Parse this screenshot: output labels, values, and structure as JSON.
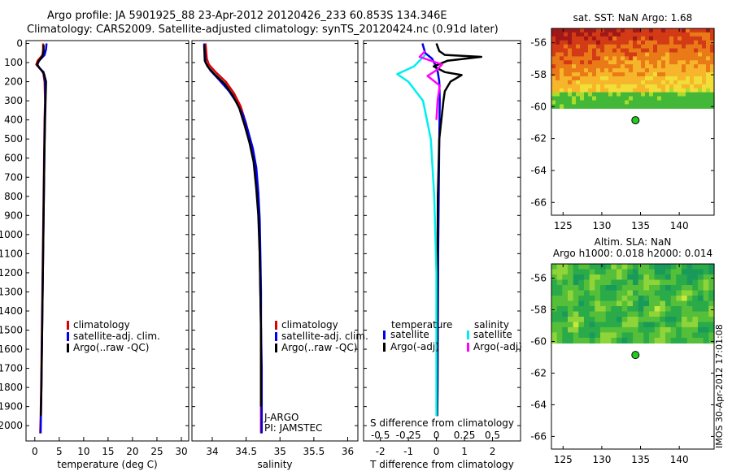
{
  "header": {
    "line1": "Argo profile: JA 5901925_88 23-Apr-2012 20120426_233 60.853S 134.346E",
    "line2": "Climatology: CARS2009. Satellite-adjusted climatology: synTS_20120424.nc (0.91d later)"
  },
  "stamp": "IMOS 30-Apr-2012 17:01:08",
  "colors": {
    "climatology": "#dd0000",
    "satellite": "#0000ee",
    "argo": "#000000",
    "salinity_satellite": "#00eeee",
    "salinity_argo": "#ff00ff",
    "float_marker": "#22cc22"
  },
  "chart_data": [
    {
      "type": "line",
      "id": "temperature",
      "xlabel": "temperature (deg C)",
      "ylabel": "",
      "xlim": [
        -1.8,
        31.5
      ],
      "ylim": [
        2080,
        -15
      ],
      "xticks": [
        "0",
        "5",
        "10",
        "15",
        "20",
        "25",
        "30"
      ],
      "xtick_values": [
        0,
        5,
        10,
        15,
        20,
        25,
        30
      ],
      "yticks": [
        "0",
        "100",
        "200",
        "300",
        "400",
        "500",
        "600",
        "700",
        "800",
        "900",
        "1000",
        "1100",
        "1200",
        "1300",
        "1400",
        "1500",
        "1600",
        "1700",
        "1800",
        "1900",
        "2000"
      ],
      "ytick_values": [
        0,
        100,
        200,
        300,
        400,
        500,
        600,
        700,
        800,
        900,
        1000,
        1100,
        1200,
        1300,
        1400,
        1500,
        1600,
        1700,
        1800,
        1900,
        2000
      ],
      "legend": [
        "climatology",
        "satellite-adj. clim.",
        "Argo(..raw -QC)"
      ],
      "series": [
        {
          "name": "climatology",
          "color": "#dd0000",
          "x": [
            1.7,
            1.7,
            1.6,
            0.6,
            0.3,
            1.0,
            1.7,
            2.0,
            2.1,
            2.0,
            1.9,
            1.8,
            1.7,
            1.6,
            1.5,
            1.4,
            1.3,
            1.2,
            1.1
          ],
          "y": [
            0,
            30,
            60,
            90,
            110,
            130,
            150,
            200,
            300,
            400,
            600,
            800,
            1000,
            1200,
            1400,
            1600,
            1800,
            1950,
            2040
          ]
        },
        {
          "name": "satellite-adj. clim.",
          "color": "#0000ee",
          "x": [
            2.4,
            2.3,
            2.0,
            0.9,
            0.5,
            1.0,
            1.8,
            2.1,
            2.15,
            2.05,
            1.95,
            1.85,
            1.75,
            1.65,
            1.55,
            1.45,
            1.35,
            1.25,
            1.2
          ],
          "y": [
            0,
            30,
            60,
            90,
            110,
            130,
            150,
            200,
            300,
            400,
            600,
            800,
            1000,
            1200,
            1400,
            1600,
            1800,
            1950,
            2040
          ]
        },
        {
          "name": "Argo(..raw -QC)",
          "color": "#000000",
          "x": [
            1.8,
            1.8,
            1.5,
            0.7,
            0.5,
            1.2,
            1.9,
            2.3,
            2.2,
            2.1,
            1.95,
            1.85,
            1.75,
            1.65,
            1.55,
            1.45,
            1.35,
            1.25
          ],
          "y": [
            8,
            40,
            70,
            95,
            115,
            135,
            160,
            200,
            300,
            400,
            600,
            800,
            1000,
            1200,
            1400,
            1600,
            1800,
            1950
          ]
        }
      ]
    },
    {
      "type": "line",
      "id": "salinity",
      "xlabel": "salinity",
      "ylabel": "",
      "xlim": [
        33.7,
        36.15
      ],
      "ylim": [
        2080,
        -15
      ],
      "xticks": [
        "34",
        "34.5",
        "35",
        "35.5",
        "36"
      ],
      "xtick_values": [
        34,
        34.5,
        35,
        35.5,
        36
      ],
      "legend": [
        "climatology",
        "satellite-adj. clim.",
        "Argo(..raw -QC)"
      ],
      "annotation": [
        "J-ARGO",
        "PI: JAMSTEC"
      ],
      "series": [
        {
          "name": "climatology",
          "color": "#dd0000",
          "x": [
            33.9,
            33.92,
            33.95,
            34.05,
            34.2,
            34.32,
            34.42,
            34.5,
            34.57,
            34.62,
            34.66,
            34.69,
            34.7,
            34.71,
            34.72,
            34.72,
            34.72,
            34.72
          ],
          "y": [
            0,
            80,
            110,
            150,
            200,
            260,
            330,
            420,
            520,
            620,
            760,
            900,
            1100,
            1300,
            1500,
            1700,
            1900,
            2040
          ]
        },
        {
          "name": "satellite-adj. clim.",
          "color": "#0000ee",
          "x": [
            33.88,
            33.9,
            33.97,
            34.1,
            34.25,
            34.36,
            34.46,
            34.53,
            34.6,
            34.65,
            34.68,
            34.7,
            34.71,
            34.72,
            34.72,
            34.73,
            34.73,
            34.73
          ],
          "y": [
            0,
            100,
            140,
            190,
            250,
            310,
            380,
            460,
            550,
            650,
            780,
            920,
            1100,
            1300,
            1500,
            1700,
            1900,
            2040
          ]
        },
        {
          "name": "Argo(..raw -QC)",
          "color": "#000000",
          "x": [
            33.88,
            33.89,
            33.93,
            34.03,
            34.18,
            34.3,
            34.4,
            34.48,
            34.55,
            34.61,
            34.65,
            34.68,
            34.7,
            34.71,
            34.72,
            34.72,
            34.72
          ],
          "y": [
            8,
            90,
            120,
            160,
            210,
            270,
            340,
            430,
            520,
            620,
            760,
            900,
            1100,
            1300,
            1500,
            1700,
            1900
          ]
        }
      ]
    },
    {
      "type": "line",
      "id": "differences",
      "xlabel": "T difference from climatology",
      "xlabel2": "S difference from climatology",
      "xlim": [
        -2.6,
        3.0
      ],
      "ylim": [
        2080,
        -15
      ],
      "xticks": [
        "-2",
        "-1",
        "0",
        "1",
        "2"
      ],
      "xtick_values": [
        -2,
        -1,
        0,
        1,
        2
      ],
      "xticks2": [
        "-0.5",
        "-0.25",
        "0",
        "0.25",
        "0.5"
      ],
      "xtick_values2": [
        -0.5,
        -0.25,
        0,
        0.25,
        0.5
      ],
      "legend_temperature": [
        "temperature",
        "satellite",
        "Argo(-adj)"
      ],
      "legend_salinity": [
        "salinity",
        "satellite",
        "Argo(-adj)"
      ],
      "series": [
        {
          "name": "satellite",
          "group": "temperature",
          "color": "#0000ee",
          "x": [
            -0.5,
            -0.4,
            -0.15,
            -0.05,
            0.05,
            0.1,
            0.12,
            0.1,
            0.08,
            0.06,
            0.05,
            0.04,
            0.03
          ],
          "y": [
            0,
            50,
            80,
            110,
            150,
            200,
            300,
            500,
            800,
            1100,
            1500,
            1800,
            1950
          ]
        },
        {
          "name": "Argo(-adj)",
          "group": "temperature",
          "color": "#000000",
          "x": [
            0.0,
            0.1,
            0.3,
            1.6,
            0.4,
            -0.1,
            0.3,
            0.9,
            0.5,
            0.3,
            0.25,
            0.1,
            0.05,
            0.03,
            0.02
          ],
          "y": [
            0,
            40,
            60,
            70,
            90,
            120,
            150,
            165,
            200,
            250,
            300,
            500,
            800,
            1500,
            1950
          ]
        },
        {
          "name": "satellite",
          "group": "salinity",
          "color": "#00eeee",
          "x": [
            -0.1,
            -0.2,
            -0.35,
            -0.25,
            -0.12,
            -0.05,
            -0.02,
            0.0,
            0.0,
            0.0
          ],
          "y": [
            60,
            120,
            160,
            200,
            300,
            500,
            800,
            1200,
            1600,
            1950
          ]
        },
        {
          "name": "Argo(-adj)",
          "group": "salinity",
          "color": "#ff00ff",
          "x": [
            -0.1,
            -0.15,
            -0.05,
            0.05,
            0.0,
            -0.08,
            0.03,
            0.01,
            0.0
          ],
          "y": [
            40,
            70,
            90,
            110,
            140,
            170,
            220,
            300,
            400
          ]
        }
      ]
    },
    {
      "type": "heatmap",
      "id": "sst_map",
      "title": "sat. SST: NaN Argo: 1.68",
      "xlim": [
        123.5,
        144.5
      ],
      "ylim": [
        -66.8,
        -55.1
      ],
      "xticks": [
        "125",
        "130",
        "135",
        "140"
      ],
      "xtick_values": [
        125,
        130,
        135,
        140
      ],
      "yticks": [
        "-56",
        "-58",
        "-60",
        "-62",
        "-64",
        "-66"
      ],
      "ytick_values": [
        -56,
        -58,
        -60,
        -62,
        -64,
        -66
      ],
      "data_extent_lat": [
        -60.1,
        -55.1
      ],
      "palette": [
        "#a01818",
        "#d33a16",
        "#ea7a18",
        "#f6b52a",
        "#f1de38",
        "#a9dc2c",
        "#43b737"
      ],
      "float_position": {
        "lon": 134.346,
        "lat": -60.853
      }
    },
    {
      "type": "heatmap",
      "id": "sla_map",
      "title": "Altim. SLA: NaN",
      "subtitle": "Argo h1000: 0.018 h2000: 0.014",
      "xlim": [
        123.5,
        144.5
      ],
      "ylim": [
        -66.8,
        -55.1
      ],
      "xticks": [
        "125",
        "130",
        "135",
        "140"
      ],
      "xtick_values": [
        125,
        130,
        135,
        140
      ],
      "yticks": [
        "-56",
        "-58",
        "-60",
        "-62",
        "-64",
        "-66"
      ],
      "ytick_values": [
        -56,
        -58,
        -60,
        -62,
        -64,
        -66
      ],
      "data_extent_lat": [
        -60.1,
        -55.1
      ],
      "palette": [
        "#1a9a5a",
        "#2aaa48",
        "#55bf3a",
        "#8fd438",
        "#c8e83c",
        "#e8f56a"
      ],
      "float_position": {
        "lon": 134.346,
        "lat": -60.853
      }
    }
  ]
}
